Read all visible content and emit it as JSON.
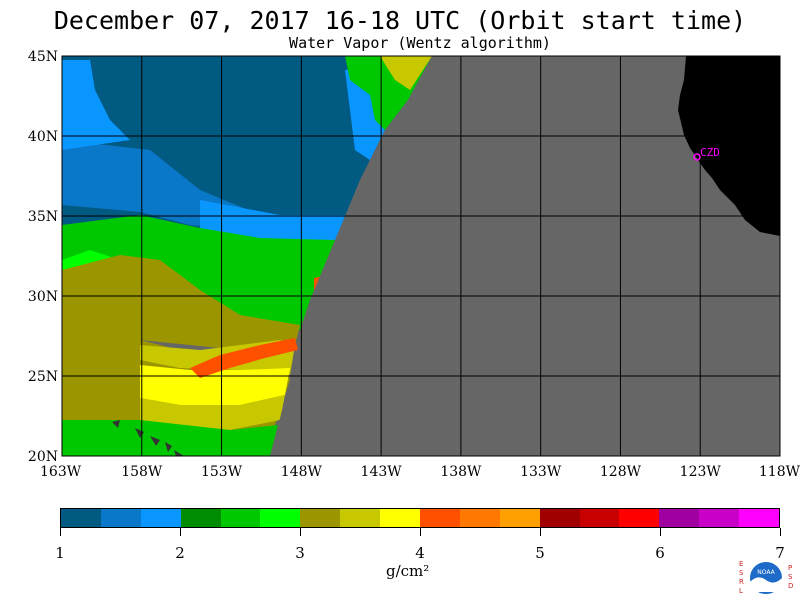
{
  "header": {
    "title": "December 07, 2017  16-18 UTC  (Orbit start time)",
    "subtitle": "Water Vapor (Wentz algorithm)"
  },
  "map": {
    "lat_labels": [
      "45N",
      "40N",
      "35N",
      "30N",
      "25N",
      "20N"
    ],
    "lon_labels": [
      "163W",
      "158W",
      "153W",
      "148W",
      "143W",
      "138W",
      "133W",
      "128W",
      "123W",
      "118W"
    ],
    "station_label": "CZD",
    "station_color": "#ff00ff",
    "no_data_color": "#666666",
    "land_color": "#000000"
  },
  "colorbar": {
    "colors": [
      "#005a82",
      "#0a78c8",
      "#0a96ff",
      "#008c00",
      "#00c800",
      "#00ff00",
      "#9b9600",
      "#c8c800",
      "#ffff00",
      "#ff5000",
      "#ff7800",
      "#ffa000",
      "#a00000",
      "#c80000",
      "#ff0000",
      "#a000a0",
      "#c800c8",
      "#ff00ff"
    ],
    "tick_labels": [
      "1",
      "2",
      "3",
      "4",
      "5",
      "6",
      "7"
    ],
    "units_label": "g/cm²"
  },
  "logo": {
    "left_text": "ESRL",
    "right_text": "PSD",
    "center_text": "NOAA"
  }
}
